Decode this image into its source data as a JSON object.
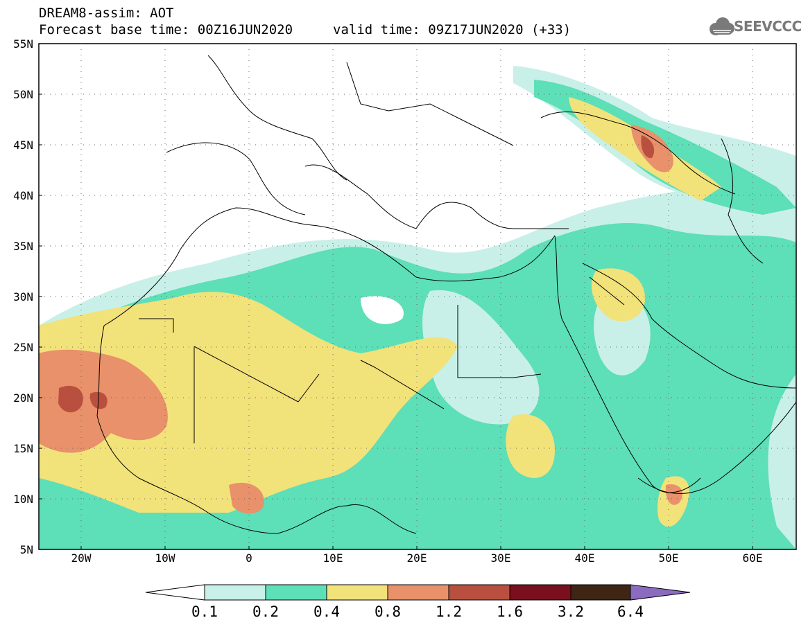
{
  "title": {
    "line1": "DREAM8-assim: AOT",
    "base_time": "Forecast base time: 00Z16JUN2020",
    "valid_time": "valid time: 09Z17JUN2020 (+33)"
  },
  "logo": {
    "text": "SEEVCCC",
    "icon": "cloud-icon"
  },
  "map": {
    "lat_labels": [
      "55N",
      "50N",
      "45N",
      "40N",
      "35N",
      "30N",
      "25N",
      "20N",
      "15N",
      "10N",
      "5N"
    ],
    "lon_labels": [
      "20W",
      "10W",
      "0",
      "10E",
      "20E",
      "30E",
      "40E",
      "50E",
      "60E"
    ]
  },
  "colorbar": {
    "labels": [
      "0.1",
      "0.2",
      "0.4",
      "0.8",
      "1.2",
      "1.6",
      "3.2",
      "6.4"
    ],
    "colors": [
      "#c8f0e8",
      "#5ddfb8",
      "#f2e27a",
      "#e8916a",
      "#b9503f",
      "#7a0f1e",
      "#3f2514",
      "#8a6bbf"
    ]
  }
}
